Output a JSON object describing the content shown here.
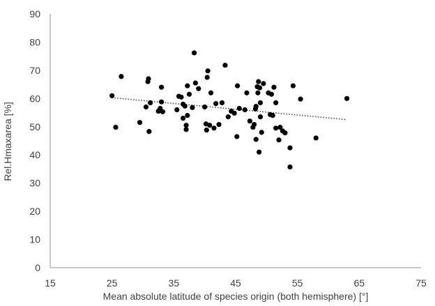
{
  "chart_data": {
    "type": "scatter",
    "title": "",
    "xlabel": "Mean absolute latitude of species origin (both hemisphere) [°]",
    "ylabel": "Rel.Hmaxarea [%]",
    "xlim": [
      15,
      75
    ],
    "ylim": [
      0,
      90
    ],
    "x_ticks": [
      15,
      25,
      35,
      45,
      55,
      65,
      75
    ],
    "y_ticks": [
      0,
      10,
      20,
      30,
      40,
      50,
      60,
      70,
      80,
      90
    ],
    "grid": false,
    "legend": "none",
    "point_color": "#000000",
    "trendline": {
      "style": "dotted",
      "color": "#555555",
      "x": [
        25,
        63
      ],
      "y": [
        60.3,
        52.5
      ]
    },
    "points": [
      {
        "x": 25.0,
        "y": 61.0
      },
      {
        "x": 25.6,
        "y": 49.8
      },
      {
        "x": 26.5,
        "y": 67.8
      },
      {
        "x": 29.5,
        "y": 51.5
      },
      {
        "x": 30.5,
        "y": 57.0
      },
      {
        "x": 30.8,
        "y": 66.0
      },
      {
        "x": 30.9,
        "y": 67.0
      },
      {
        "x": 31.0,
        "y": 48.3
      },
      {
        "x": 31.2,
        "y": 58.5
      },
      {
        "x": 32.5,
        "y": 55.5
      },
      {
        "x": 32.8,
        "y": 56.5
      },
      {
        "x": 33.0,
        "y": 58.8
      },
      {
        "x": 33.0,
        "y": 64.0
      },
      {
        "x": 33.2,
        "y": 55.3
      },
      {
        "x": 35.5,
        "y": 56.0
      },
      {
        "x": 35.8,
        "y": 60.8
      },
      {
        "x": 36.2,
        "y": 60.5
      },
      {
        "x": 36.5,
        "y": 53.0
      },
      {
        "x": 36.5,
        "y": 58.0
      },
      {
        "x": 36.8,
        "y": 57.3
      },
      {
        "x": 37.0,
        "y": 50.5
      },
      {
        "x": 37.0,
        "y": 49.0
      },
      {
        "x": 37.2,
        "y": 54.0
      },
      {
        "x": 37.2,
        "y": 64.5
      },
      {
        "x": 37.5,
        "y": 61.5
      },
      {
        "x": 38.0,
        "y": 56.8
      },
      {
        "x": 38.3,
        "y": 76.2
      },
      {
        "x": 38.5,
        "y": 65.5
      },
      {
        "x": 39.0,
        "y": 63.5
      },
      {
        "x": 40.0,
        "y": 57.0
      },
      {
        "x": 40.2,
        "y": 51.0
      },
      {
        "x": 40.3,
        "y": 48.8
      },
      {
        "x": 40.4,
        "y": 67.5
      },
      {
        "x": 40.5,
        "y": 69.8
      },
      {
        "x": 40.8,
        "y": 50.5
      },
      {
        "x": 41.0,
        "y": 62.0
      },
      {
        "x": 41.5,
        "y": 49.5
      },
      {
        "x": 41.8,
        "y": 58.2
      },
      {
        "x": 42.3,
        "y": 50.8
      },
      {
        "x": 42.8,
        "y": 58.5
      },
      {
        "x": 43.3,
        "y": 71.8
      },
      {
        "x": 43.8,
        "y": 53.5
      },
      {
        "x": 44.3,
        "y": 55.5
      },
      {
        "x": 44.8,
        "y": 54.8
      },
      {
        "x": 45.2,
        "y": 46.5
      },
      {
        "x": 45.3,
        "y": 64.5
      },
      {
        "x": 45.6,
        "y": 56.5
      },
      {
        "x": 46.5,
        "y": 56.0
      },
      {
        "x": 46.8,
        "y": 62.0
      },
      {
        "x": 47.3,
        "y": 52.0
      },
      {
        "x": 47.8,
        "y": 49.8
      },
      {
        "x": 48.0,
        "y": 50.8
      },
      {
        "x": 48.2,
        "y": 56.3
      },
      {
        "x": 48.3,
        "y": 57.2
      },
      {
        "x": 48.3,
        "y": 45.5
      },
      {
        "x": 48.5,
        "y": 64.2
      },
      {
        "x": 48.6,
        "y": 62.0
      },
      {
        "x": 48.7,
        "y": 66.0
      },
      {
        "x": 48.8,
        "y": 41.0
      },
      {
        "x": 48.9,
        "y": 63.8
      },
      {
        "x": 49.0,
        "y": 58.5
      },
      {
        "x": 49.0,
        "y": 53.5
      },
      {
        "x": 49.2,
        "y": 48.0
      },
      {
        "x": 49.5,
        "y": 65.3
      },
      {
        "x": 50.3,
        "y": 62.0
      },
      {
        "x": 50.6,
        "y": 54.3
      },
      {
        "x": 50.8,
        "y": 61.5
      },
      {
        "x": 51.0,
        "y": 54.0
      },
      {
        "x": 51.2,
        "y": 64.0
      },
      {
        "x": 51.5,
        "y": 49.5
      },
      {
        "x": 51.5,
        "y": 58.5
      },
      {
        "x": 52.0,
        "y": 45.3
      },
      {
        "x": 52.2,
        "y": 49.8
      },
      {
        "x": 52.6,
        "y": 48.5
      },
      {
        "x": 53.0,
        "y": 47.8
      },
      {
        "x": 53.8,
        "y": 42.5
      },
      {
        "x": 53.8,
        "y": 35.7
      },
      {
        "x": 54.3,
        "y": 64.5
      },
      {
        "x": 55.5,
        "y": 59.8
      },
      {
        "x": 58.0,
        "y": 46.0
      },
      {
        "x": 63.0,
        "y": 60.0
      }
    ]
  }
}
